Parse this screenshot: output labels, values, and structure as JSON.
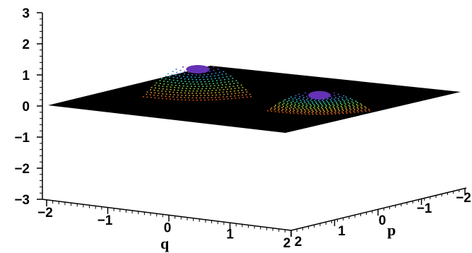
{
  "chart_data": {
    "type": "surface3d",
    "xlabel": "q",
    "ylabel": "p",
    "zlabel": "",
    "q_ticks": [
      "−2",
      "−1",
      "0",
      "1",
      "2"
    ],
    "q_tick_values": [
      -2,
      -1,
      0,
      1,
      2
    ],
    "p_ticks": [
      "2",
      "1",
      "0",
      "−1",
      "−2"
    ],
    "p_tick_values": [
      2,
      1,
      0,
      -1,
      -2
    ],
    "z_ticks": [
      "3",
      "2",
      "1",
      "0",
      "−1",
      "−2",
      "−3"
    ],
    "z_tick_values": [
      3,
      2,
      1,
      0,
      -1,
      -2,
      -3
    ],
    "xlim": [
      -2,
      2
    ],
    "ylim": [
      -2,
      2
    ],
    "zlim": [
      -3,
      3
    ],
    "surface": {
      "base_level": 0,
      "peaks": [
        {
          "q": -0.8,
          "p": 1.0,
          "height": 1.0
        },
        {
          "q": 0.9,
          "p": -0.6,
          "height": 0.7
        }
      ]
    },
    "colors": {
      "plane": "#000000",
      "peak_gradient": [
        "#c8501a",
        "#d6a030",
        "#8cc832",
        "#32c896",
        "#3296dc",
        "#6432b4"
      ]
    }
  }
}
